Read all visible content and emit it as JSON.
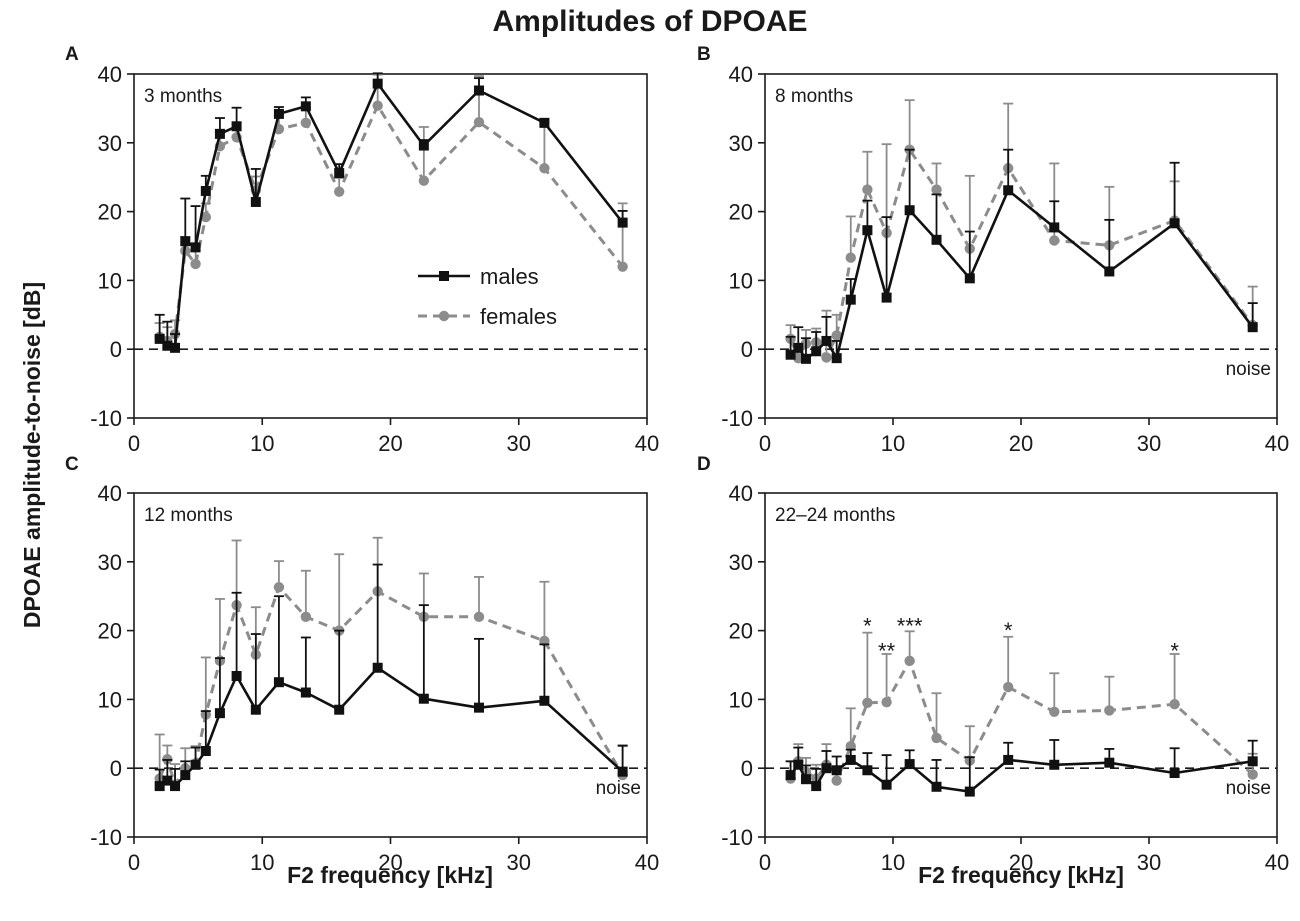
{
  "figure": {
    "title": "Amplitudes of DPOAE",
    "ylabel": "DPOAE amplitude-to-noise [dB]",
    "xlabel": "F2 frequency [kHz]"
  },
  "legend": {
    "entries": [
      {
        "name": "males",
        "color": "#111111",
        "marker": "square",
        "dash": "solid"
      },
      {
        "name": "females",
        "color": "#8c8c8c",
        "marker": "circle",
        "dash": "dashed"
      }
    ]
  },
  "chart_data": [
    {
      "type": "line",
      "panel": "A",
      "label": "3 months",
      "noise_label": "",
      "xlim": [
        0,
        40
      ],
      "ylim": [
        -10,
        40
      ],
      "xticks": [
        0,
        10,
        20,
        30,
        40
      ],
      "yticks": [
        -10,
        0,
        10,
        20,
        30,
        40
      ],
      "noise_level": 0,
      "series": [
        {
          "name": "males",
          "x": [
            2.0,
            2.6,
            3.2,
            4.0,
            4.8,
            5.6,
            6.7,
            8.0,
            9.5,
            11.3,
            13.4,
            16.0,
            19.0,
            22.6,
            26.9,
            32.0,
            38.1
          ],
          "y": [
            1.5,
            0.5,
            0.2,
            15.7,
            14.8,
            23.0,
            31.3,
            32.4,
            21.4,
            34.2,
            35.3,
            25.6,
            38.6,
            29.6,
            37.6,
            32.9,
            18.4
          ],
          "err": [
            3.5,
            3.5,
            2.0,
            6.2,
            6.0,
            2.2,
            2.3,
            2.7,
            4.8,
            1.0,
            1.3,
            1.3,
            1.5,
            0.8,
            1.8,
            0.5,
            1.7
          ]
        },
        {
          "name": "females",
          "x": [
            2.0,
            2.6,
            3.2,
            4.0,
            4.8,
            5.6,
            6.7,
            8.0,
            9.5,
            11.3,
            13.4,
            16.0,
            19.0,
            22.6,
            26.9,
            32.0,
            38.1
          ],
          "y": [
            1.8,
            1.2,
            2.2,
            14.3,
            12.4,
            19.2,
            29.5,
            30.8,
            23.1,
            32.0,
            32.9,
            22.9,
            35.4,
            24.5,
            33.0,
            26.3,
            12.0
          ],
          "err": [
            2.0,
            2.0,
            2.0,
            2.0,
            2.0,
            2.0,
            2.0,
            2.0,
            2.0,
            2.0,
            2.0,
            2.0,
            4.5,
            7.8,
            6.7,
            6.7,
            9.2
          ]
        }
      ],
      "annotations": []
    },
    {
      "type": "line",
      "panel": "B",
      "label": "8 months",
      "noise_label": "noise",
      "xlim": [
        0,
        40
      ],
      "ylim": [
        -10,
        40
      ],
      "xticks": [
        0,
        10,
        20,
        30,
        40
      ],
      "yticks": [
        -10,
        0,
        10,
        20,
        30,
        40
      ],
      "noise_level": 0,
      "series": [
        {
          "name": "males",
          "x": [
            2.0,
            2.6,
            3.2,
            4.0,
            4.8,
            5.6,
            6.7,
            8.0,
            9.5,
            11.3,
            13.4,
            16.0,
            19.0,
            22.6,
            26.9,
            32.0,
            38.1
          ],
          "y": [
            -0.8,
            0.2,
            -1.4,
            -0.3,
            1.2,
            -1.3,
            7.2,
            17.3,
            7.5,
            20.2,
            15.9,
            10.3,
            23.1,
            17.7,
            11.3,
            18.3,
            3.2
          ],
          "err": [
            2.6,
            3.0,
            3.0,
            2.8,
            3.5,
            2.5,
            3.0,
            4.3,
            11.7,
            8.8,
            6.6,
            6.8,
            5.9,
            3.8,
            7.5,
            8.8,
            3.5
          ]
        },
        {
          "name": "females",
          "x": [
            2.0,
            2.6,
            3.2,
            4.0,
            4.8,
            5.6,
            6.7,
            8.0,
            9.5,
            11.3,
            13.4,
            16.0,
            19.0,
            22.6,
            26.9,
            32.0,
            38.1
          ],
          "y": [
            1.5,
            -1.3,
            0.8,
            1.0,
            -1.2,
            2.0,
            13.3,
            23.2,
            16.9,
            29.0,
            23.2,
            14.6,
            26.3,
            15.8,
            15.1,
            18.7,
            3.5
          ],
          "err": [
            2.0,
            2.0,
            2.0,
            2.0,
            6.8,
            3.0,
            6.0,
            5.5,
            12.9,
            7.2,
            3.8,
            10.6,
            9.4,
            11.2,
            8.5,
            5.7,
            5.6
          ]
        }
      ],
      "annotations": []
    },
    {
      "type": "line",
      "panel": "C",
      "label": "12 months",
      "noise_label": "noise",
      "xlim": [
        0,
        40
      ],
      "ylim": [
        -10,
        40
      ],
      "xticks": [
        0,
        10,
        20,
        30,
        40
      ],
      "yticks": [
        -10,
        0,
        10,
        20,
        30,
        40
      ],
      "noise_level": 0,
      "series": [
        {
          "name": "males",
          "x": [
            2.0,
            2.6,
            3.2,
            4.0,
            4.8,
            5.6,
            6.7,
            8.0,
            9.5,
            11.3,
            13.4,
            16.0,
            19.0,
            22.6,
            26.9,
            32.0,
            38.1
          ],
          "y": [
            -2.6,
            -1.8,
            -2.6,
            -1.0,
            0.5,
            2.5,
            8.0,
            13.4,
            8.5,
            12.5,
            11.0,
            8.5,
            14.6,
            10.1,
            8.8,
            9.8,
            -0.5
          ],
          "err": [
            2.4,
            3.0,
            2.5,
            2.0,
            2.5,
            5.8,
            8.0,
            12.1,
            11.0,
            12.5,
            8.0,
            11.5,
            15.0,
            13.6,
            10.0,
            8.2,
            3.8
          ]
        },
        {
          "name": "females",
          "x": [
            2.0,
            2.6,
            3.2,
            4.0,
            4.8,
            5.6,
            6.7,
            8.0,
            9.5,
            11.3,
            13.4,
            16.0,
            19.0,
            22.6,
            26.9,
            32.0,
            38.1
          ],
          "y": [
            -1.5,
            1.3,
            -2.4,
            0.0,
            0.7,
            7.8,
            15.6,
            23.7,
            16.5,
            26.3,
            22.0,
            20.0,
            25.7,
            22.0,
            22.0,
            18.5,
            -1.0
          ],
          "err": [
            6.4,
            2.0,
            3.0,
            2.9,
            2.5,
            8.3,
            9.0,
            9.4,
            6.9,
            3.8,
            6.7,
            11.1,
            7.8,
            6.3,
            5.8,
            8.6,
            4.2
          ]
        }
      ],
      "annotations": []
    },
    {
      "type": "line",
      "panel": "D",
      "label": "22–24 months",
      "noise_label": "noise",
      "xlim": [
        0,
        40
      ],
      "ylim": [
        -10,
        40
      ],
      "xticks": [
        0,
        10,
        20,
        30,
        40
      ],
      "yticks": [
        -10,
        0,
        10,
        20,
        30,
        40
      ],
      "noise_level": 0,
      "series": [
        {
          "name": "males",
          "x": [
            2.0,
            2.6,
            3.2,
            4.0,
            4.8,
            5.6,
            6.7,
            8.0,
            9.5,
            11.3,
            13.4,
            16.0,
            19.0,
            22.6,
            26.9,
            32.0,
            38.1
          ],
          "y": [
            -1.0,
            0.5,
            -1.6,
            -2.6,
            0.0,
            -0.3,
            1.2,
            -0.3,
            -2.4,
            0.6,
            -2.7,
            -3.4,
            1.2,
            0.5,
            0.8,
            -0.7,
            1.0
          ],
          "err": [
            2.0,
            2.5,
            2.0,
            2.5,
            2.5,
            2.0,
            1.5,
            2.5,
            4.3,
            2.0,
            3.9,
            5.0,
            2.5,
            3.6,
            2.0,
            3.6,
            3.0
          ]
        },
        {
          "name": "females",
          "x": [
            2.0,
            2.6,
            3.2,
            4.0,
            4.8,
            5.6,
            6.7,
            8.0,
            9.5,
            11.3,
            13.4,
            16.0,
            19.0,
            22.6,
            26.9,
            32.0,
            38.1
          ],
          "y": [
            -1.5,
            1.0,
            -0.5,
            -1.5,
            0.5,
            -1.8,
            3.2,
            9.5,
            9.6,
            15.6,
            4.4,
            1.1,
            11.8,
            8.2,
            8.4,
            9.3,
            -0.9
          ],
          "err": [
            2.5,
            2.5,
            2.0,
            2.0,
            3.0,
            2.0,
            5.5,
            10.2,
            7.0,
            4.3,
            6.5,
            5.0,
            7.3,
            5.6,
            4.9,
            7.3,
            3.0
          ]
        }
      ],
      "annotations": [
        {
          "text": "*",
          "x": 8.0,
          "y": 21.0
        },
        {
          "text": "**",
          "x": 9.5,
          "y": 17.4
        },
        {
          "text": "***",
          "x": 11.3,
          "y": 21.0
        },
        {
          "text": "*",
          "x": 19.0,
          "y": 20.4
        },
        {
          "text": "*",
          "x": 32.0,
          "y": 17.4
        }
      ]
    }
  ]
}
